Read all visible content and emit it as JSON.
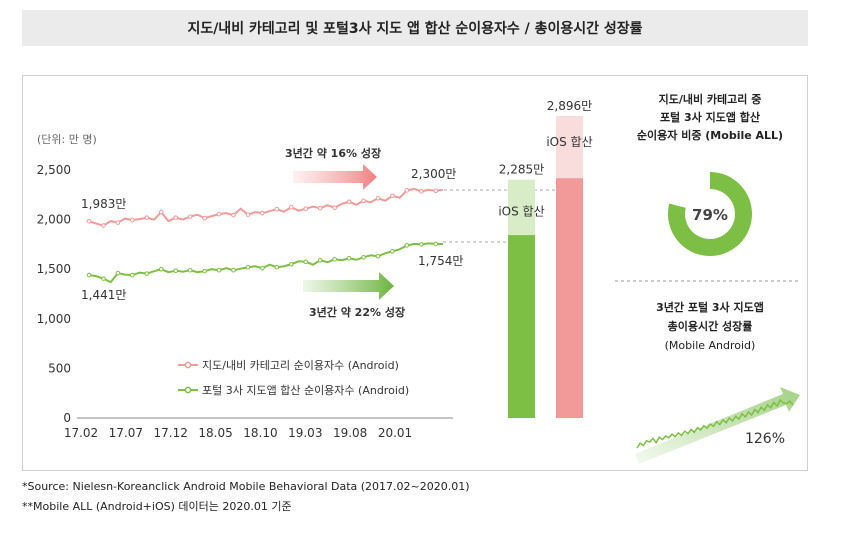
{
  "title": "지도/내비 카테고리 및 포털3사 지도 앱 합산 순이용자수 / 총이용시간 성장률",
  "footnotes": [
    "*Source: Nielesn-Koreanclick Android Mobile Behavioral Data (2017.02~2020.01)",
    "**Mobile ALL (Android+iOS) 데이터는 2020.01 기준"
  ],
  "colors": {
    "map_nav": "#f29a9a",
    "portal": "#7dbf44",
    "arrow_red": "#f4a3a3",
    "arrow_green": "#8cc665"
  },
  "chart_data": [
    {
      "type": "line",
      "unit_label": "(단위: 만 명)",
      "x_ticks": [
        "17.02",
        "17.07",
        "17.12",
        "18.05",
        "18.10",
        "19.03",
        "19.08",
        "20.01"
      ],
      "ylim": [
        0,
        2500
      ],
      "yticks": [
        "0",
        "500",
        "1,000",
        "1,500",
        "2,000",
        "2,500"
      ],
      "series": [
        {
          "name": "지도/내비 카테고리 순이용자수 (Android)",
          "color": "#f29a9a",
          "start_label": "1,983만",
          "end_label": "2,300만",
          "values": [
            1983,
            1960,
            1940,
            1985,
            1970,
            2010,
            1995,
            2005,
            2020,
            2000,
            2075,
            1985,
            2020,
            2000,
            2030,
            2050,
            2015,
            2035,
            2055,
            2065,
            2045,
            2110,
            2050,
            2075,
            2065,
            2085,
            2105,
            2080,
            2125,
            2090,
            2110,
            2130,
            2115,
            2145,
            2120,
            2160,
            2180,
            2150,
            2190,
            2175,
            2215,
            2190,
            2240,
            2220,
            2295,
            2310,
            2285,
            2300,
            2290,
            2300
          ]
        },
        {
          "name": "포털 3사 지도앱 합산 순이용자수 (Android)",
          "color": "#7dbf44",
          "start_label": "1,441만",
          "end_label": "1,754만",
          "values": [
            1441,
            1430,
            1405,
            1370,
            1460,
            1445,
            1440,
            1465,
            1455,
            1480,
            1500,
            1470,
            1485,
            1475,
            1490,
            1470,
            1480,
            1500,
            1490,
            1510,
            1490,
            1505,
            1520,
            1530,
            1510,
            1545,
            1520,
            1530,
            1550,
            1580,
            1575,
            1545,
            1590,
            1570,
            1600,
            1590,
            1610,
            1595,
            1620,
            1640,
            1630,
            1660,
            1680,
            1700,
            1740,
            1755,
            1750,
            1760,
            1755,
            1754
          ]
        }
      ],
      "annotations": [
        {
          "text": "3년간 약 16% 성장",
          "arrow": "red"
        },
        {
          "text": "3년간 약 22% 성장",
          "arrow": "green"
        }
      ]
    },
    {
      "type": "bar",
      "bars": [
        {
          "label": "iOS 합산",
          "total": 2285,
          "total_label": "2,285만",
          "android": 1754,
          "color": "#7dbf44",
          "light_color": "#d8ecc7"
        },
        {
          "label": "iOS 합산",
          "total": 2896,
          "total_label": "2,896만",
          "android": 2300,
          "color": "#f29a9a",
          "light_color": "#f9dcdc"
        }
      ]
    },
    {
      "type": "pie",
      "title_lines": [
        "지도/내비 카테고리 중",
        "포털 3사 지도앱 합산",
        "순이용자 비중 (Mobile ALL)"
      ],
      "value": 79,
      "label": "79%",
      "color": "#7dbf44"
    },
    {
      "type": "line",
      "title_lines": [
        "3년간 포털 3사 지도앱",
        "총이용시간 성장률",
        "(Mobile Android)"
      ],
      "growth_label": "126%",
      "color": "#7dbf44",
      "values": [
        10,
        18,
        14,
        22,
        20,
        26,
        19,
        28,
        24,
        30,
        27,
        33,
        29,
        35,
        31,
        38,
        34,
        41,
        36,
        44,
        40,
        47,
        43,
        50,
        46,
        54,
        49,
        57,
        52,
        60,
        55,
        63,
        58,
        67,
        62,
        70,
        65,
        74,
        69,
        78,
        73,
        82,
        77,
        86,
        80,
        90,
        85,
        84,
        88,
        82
      ]
    }
  ]
}
